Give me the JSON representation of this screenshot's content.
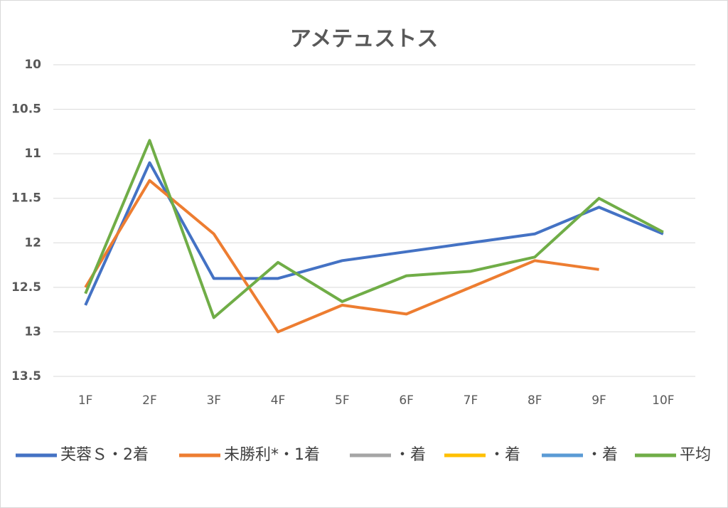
{
  "chart_data": {
    "type": "line",
    "title": "アメテュストス",
    "categories": [
      "1F",
      "2F",
      "3F",
      "4F",
      "5F",
      "6F",
      "7F",
      "8F",
      "9F",
      "10F"
    ],
    "series": [
      {
        "name": "芙蓉Ｓ・2着",
        "color": "#4472c4",
        "values": [
          12.7,
          11.1,
          12.4,
          12.4,
          12.2,
          12.1,
          12.0,
          11.9,
          11.6,
          11.9
        ]
      },
      {
        "name": "未勝利*・1着",
        "color": "#ed7d31",
        "values": [
          12.5,
          11.3,
          11.9,
          13.0,
          12.7,
          12.8,
          12.5,
          12.2,
          12.3,
          null
        ]
      },
      {
        "name": "・着",
        "color": "#a5a5a5",
        "values": [
          null,
          null,
          null,
          null,
          null,
          null,
          null,
          null,
          null,
          null
        ]
      },
      {
        "name": "・着",
        "color": "#ffc000",
        "values": [
          null,
          null,
          null,
          null,
          null,
          null,
          null,
          null,
          null,
          null
        ]
      },
      {
        "name": "・着",
        "color": "#5b9bd5",
        "values": [
          null,
          null,
          null,
          null,
          null,
          null,
          null,
          null,
          null,
          null
        ]
      },
      {
        "name": "平均",
        "color": "#70ad47",
        "values": [
          12.57,
          10.85,
          12.84,
          12.22,
          12.66,
          12.37,
          12.32,
          12.16,
          11.5,
          11.88
        ]
      }
    ],
    "ylim": [
      10,
      13.5
    ],
    "y_reversed": true,
    "yticks": [
      10,
      10.5,
      11,
      11.5,
      12,
      12.5,
      13,
      13.5
    ],
    "grid": true,
    "legend": "bottom"
  }
}
